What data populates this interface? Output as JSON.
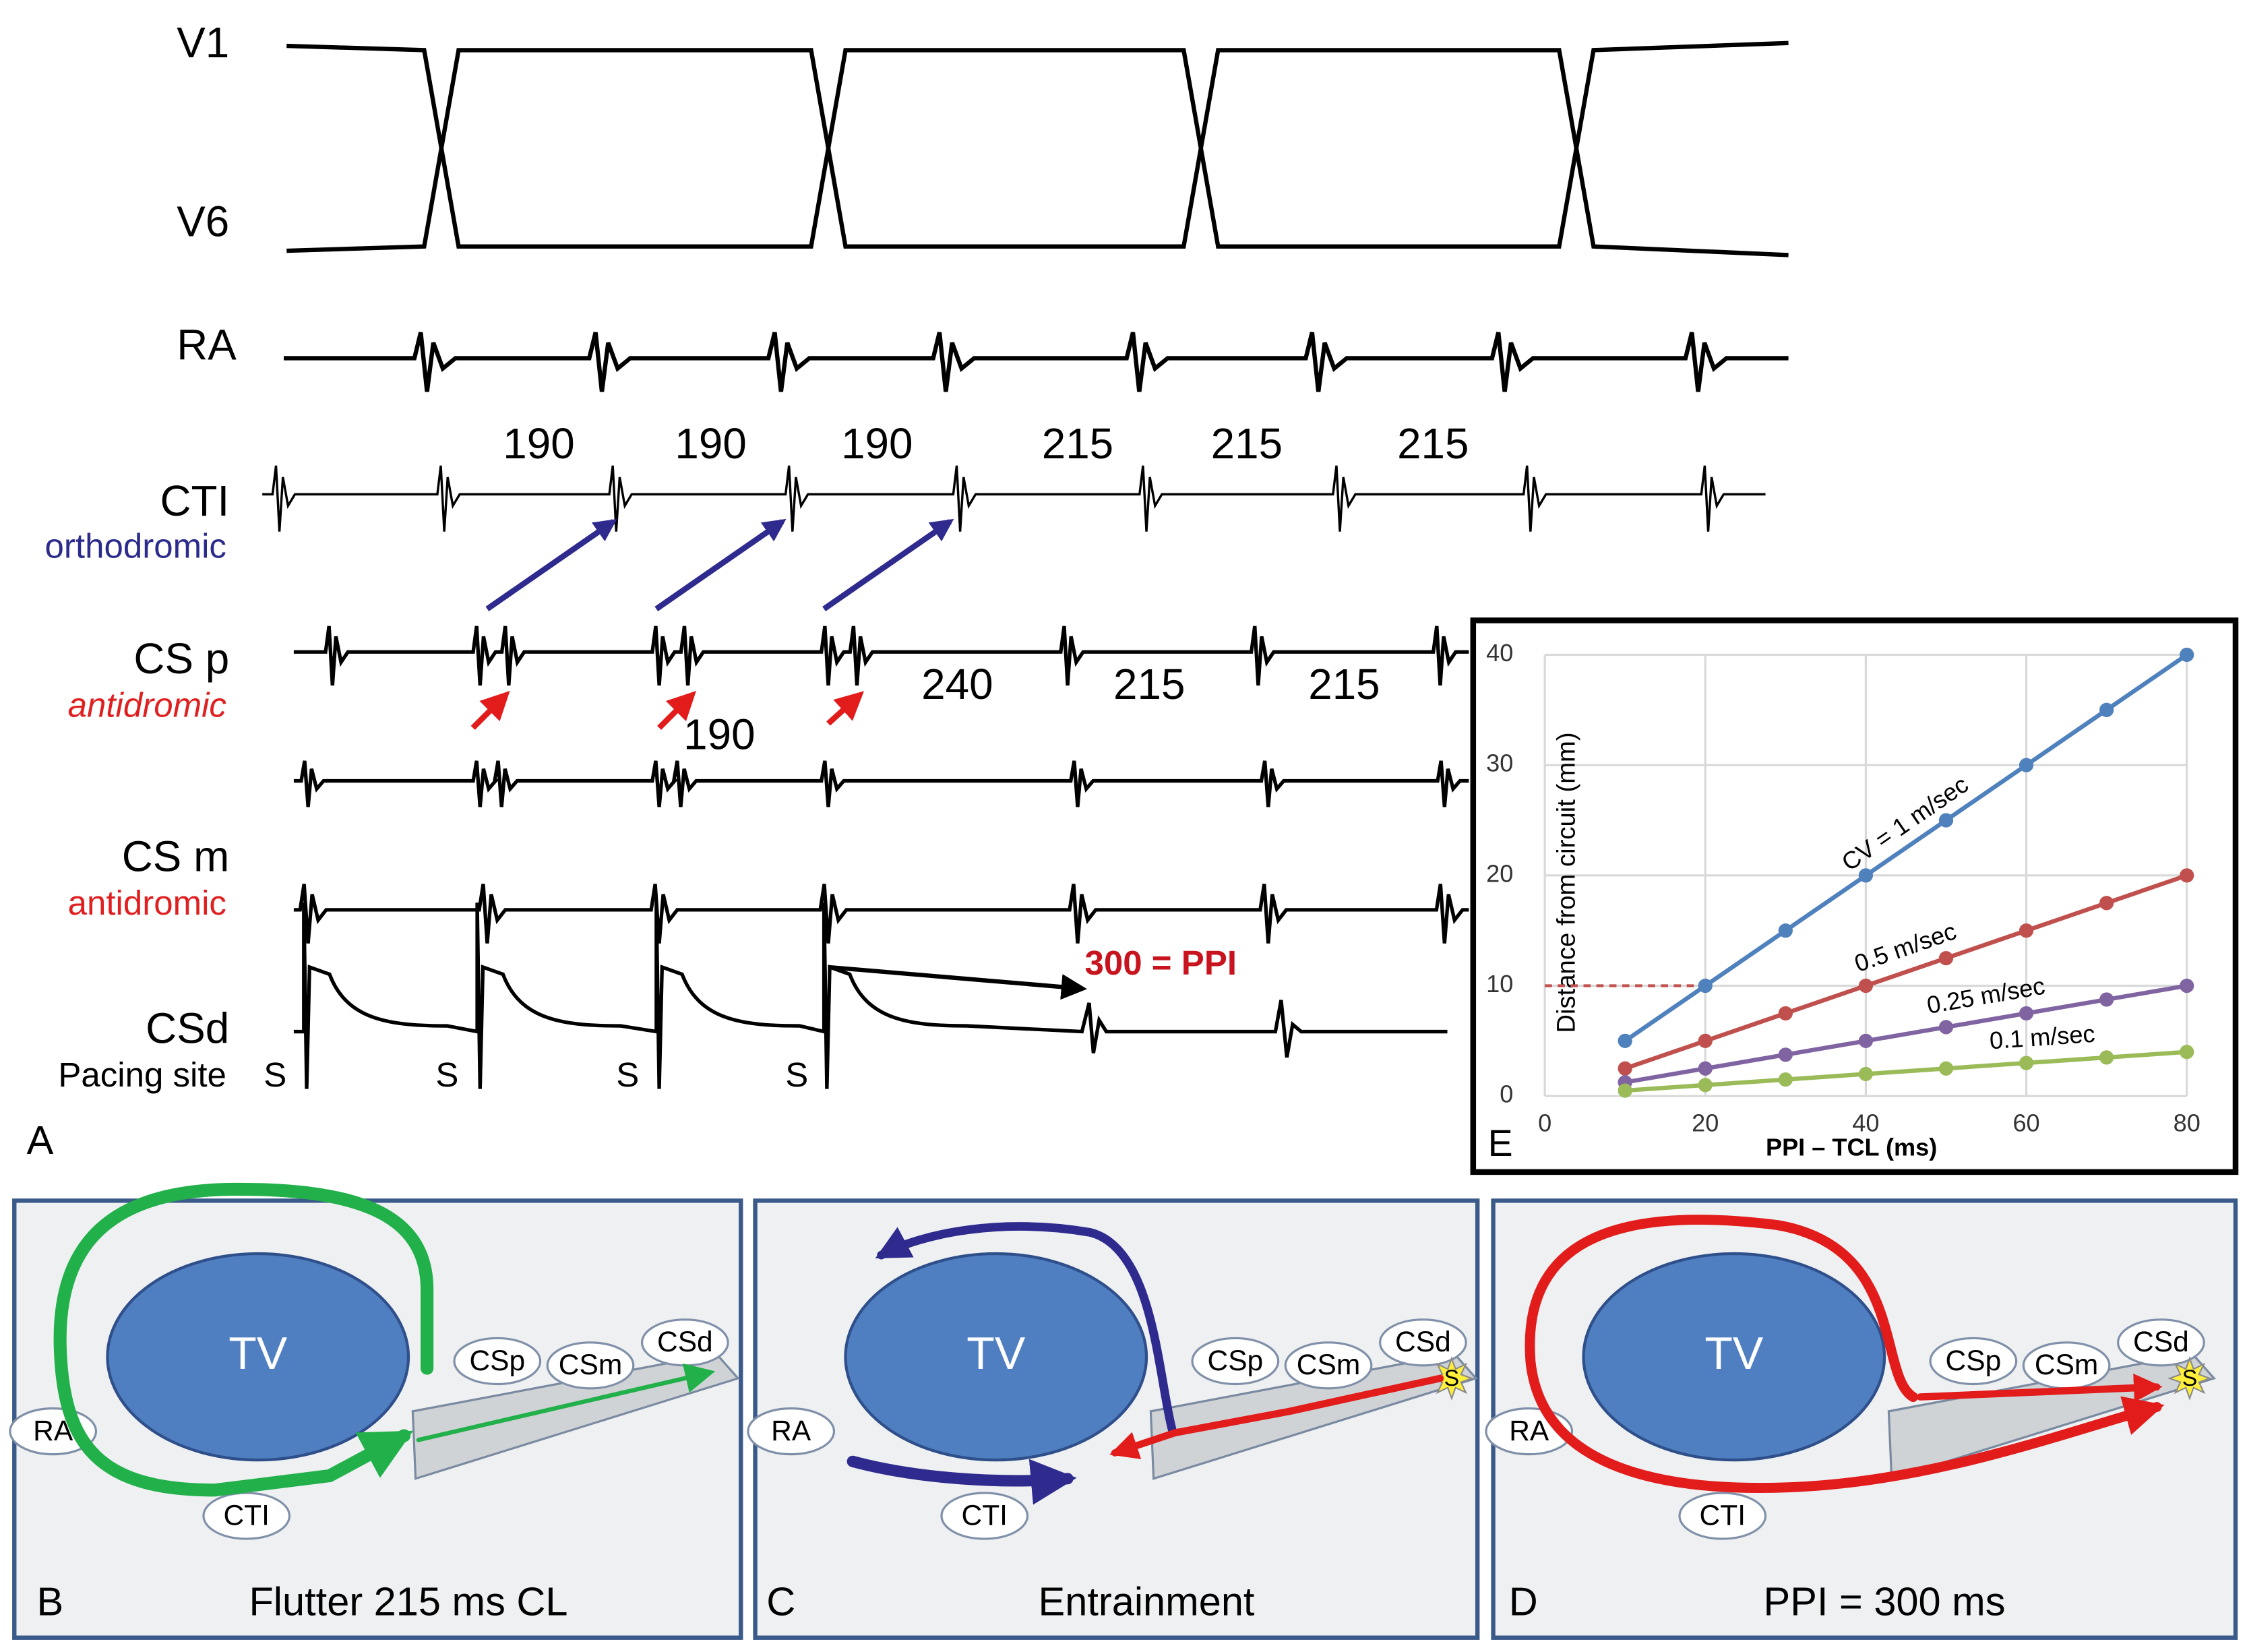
{
  "panel_a": {
    "letter": "A",
    "leads": [
      "V1",
      "V6",
      "RA",
      "CTI",
      "CS p",
      "CS m",
      "CSd"
    ],
    "sublabels": [
      "orthodromic",
      "antidromic",
      "antidromic",
      "Pacing site"
    ],
    "stim_labels": [
      "S",
      "S",
      "S",
      "S"
    ],
    "cti_intervals": [
      190,
      190,
      190,
      215,
      215,
      215
    ],
    "csp_intervals": [
      240,
      215,
      215
    ],
    "csp_interval_below": 190,
    "ppi_label": "300 = PPI"
  },
  "panels": [
    {
      "letter": "B",
      "caption": "Flutter 215 ms CL",
      "labels": [
        "TV",
        "RA",
        "CTI",
        "CSp",
        "CSm",
        "CSd"
      ]
    },
    {
      "letter": "C",
      "caption": "Entrainment",
      "labels": [
        "TV",
        "RA",
        "CTI",
        "CSp",
        "CSm",
        "CSd",
        "S"
      ]
    },
    {
      "letter": "D",
      "caption": "PPI = 300 ms",
      "labels": [
        "TV",
        "RA",
        "CTI",
        "CSp",
        "CSm",
        "CSd",
        "S"
      ]
    }
  ],
  "chart_data": {
    "type": "line",
    "panel_letter": "E",
    "x_label": "PPI – TCL (ms)",
    "y_label": "Distance from circuit (mm)",
    "x": [
      10,
      20,
      30,
      40,
      50,
      60,
      70,
      80
    ],
    "series": [
      {
        "name": "CV = 1 m/sec",
        "color": "#4f81bd",
        "values": [
          5,
          10,
          15,
          20,
          25,
          30,
          35,
          40
        ]
      },
      {
        "name": "0.5 m/sec",
        "color": "#c0504d",
        "values": [
          2.5,
          5,
          7.5,
          10,
          12.5,
          15,
          17.5,
          20
        ]
      },
      {
        "name": "0.25 m/sec",
        "color": "#8064a2",
        "values": [
          1.25,
          2.5,
          3.75,
          5,
          6.25,
          7.5,
          8.75,
          10
        ]
      },
      {
        "name": "0.1 m/sec",
        "color": "#9bbb59",
        "values": [
          0.5,
          1,
          1.5,
          2,
          2.5,
          3,
          3.5,
          4
        ]
      }
    ],
    "xlim": [
      0,
      80
    ],
    "ylim": [
      0,
      40
    ],
    "xticks": [
      0,
      20,
      40,
      60,
      80
    ],
    "yticks": [
      0,
      10,
      20,
      30,
      40
    ],
    "grid": true,
    "hline": {
      "y": 10,
      "xlim": [
        0,
        20
      ],
      "color": "#c0504d"
    }
  }
}
